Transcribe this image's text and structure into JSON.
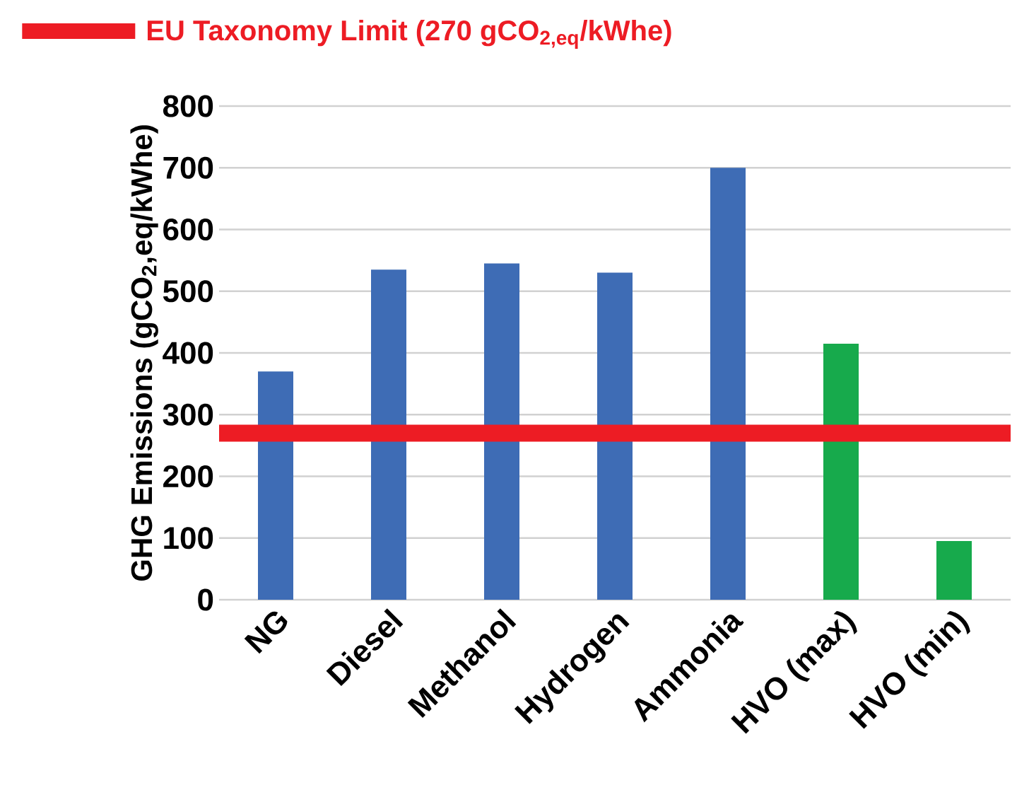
{
  "chart_data": {
    "type": "bar",
    "ylabel": "GHG Emissions (gCO$_{2}$,eq/kWhe)",
    "categories": [
      "NG",
      "Diesel",
      "Methanol",
      "Hydrogen",
      "Ammonia",
      "HVO (max)",
      "HVO (min)"
    ],
    "values": [
      370,
      535,
      545,
      530,
      700,
      415,
      95
    ],
    "colors": [
      "#3e6cb5",
      "#3e6cb5",
      "#3e6cb5",
      "#3e6cb5",
      "#3e6cb5",
      "#17aa4c",
      "#17aa4c"
    ],
    "ylim": [
      0,
      800
    ],
    "yticks": [
      0,
      100,
      200,
      300,
      400,
      500,
      600,
      700,
      800
    ],
    "grid": "y",
    "legend": "top",
    "ref_lines": [
      {
        "axis": "y",
        "value": 270,
        "label": "EU Taxonomy Limit (270 gCO$_{2,eq}$/kWhe)",
        "color": "#ed1c24"
      }
    ]
  }
}
